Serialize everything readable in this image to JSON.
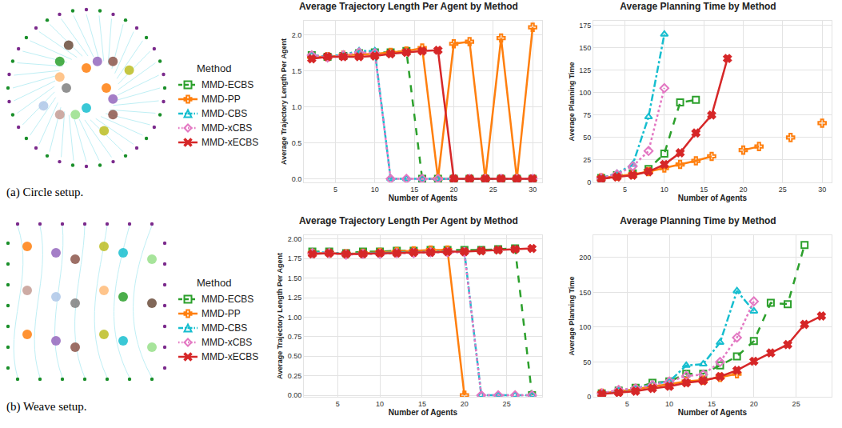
{
  "panels": [
    {
      "caption": "(a) Circle setup.",
      "legend_title": "Method"
    },
    {
      "caption": "(b) Weave setup.",
      "legend_title": "Method"
    }
  ],
  "chart_data": [
    {
      "type": "line",
      "title": "Average Trajectory Length Per Agent by Method",
      "x_label": "Number of Agents",
      "y_label": "Average Trajectory Length Per Agent",
      "x": [
        2,
        4,
        6,
        8,
        10,
        12,
        14,
        16,
        18,
        20,
        22,
        24,
        26,
        28,
        30
      ],
      "xlim": [
        1,
        31.2
      ],
      "xticks": [
        5,
        10,
        15,
        20,
        25,
        30
      ],
      "ylim": [
        -0.05,
        2.2
      ],
      "yticks": [
        {
          "value": 0,
          "label": "0.0"
        },
        {
          "value": 0.5,
          "label": "0.5"
        },
        {
          "value": 1,
          "label": "1.0"
        },
        {
          "value": 1.5,
          "label": "1.5"
        },
        {
          "value": 2,
          "label": "2.0"
        }
      ],
      "grid": true,
      "series": [
        {
          "name": "MMD-ECBS",
          "color": "#2ca02c",
          "marker": "square",
          "line_style": "dash",
          "values": [
            1.72,
            1.7,
            1.71,
            1.75,
            1.76,
            1.76,
            1.78,
            0,
            0,
            0,
            0,
            0,
            0,
            0,
            0
          ]
        },
        {
          "name": "MMD-PP",
          "color": "#ff7f0e",
          "marker": "plus",
          "line_style": "solid",
          "values": [
            1.7,
            1.7,
            1.72,
            1.73,
            1.74,
            1.76,
            1.78,
            1.82,
            0,
            1.88,
            1.91,
            0,
            1.96,
            0,
            2.11
          ]
        },
        {
          "name": "MMD-CBS",
          "color": "#17becf",
          "marker": "triangle",
          "line_style": "dashdot",
          "values": [
            1.72,
            1.7,
            1.73,
            1.78,
            1.78,
            0,
            0,
            0,
            0,
            0,
            0,
            0,
            0,
            0,
            0
          ]
        },
        {
          "name": "MMD-xCBS",
          "color": "#e377c2",
          "marker": "diamond",
          "line_style": "dot",
          "values": [
            1.72,
            1.69,
            1.72,
            1.76,
            1.75,
            0,
            0,
            0,
            0,
            0,
            0,
            0,
            0,
            0,
            0
          ]
        },
        {
          "name": "MMD-xECBS",
          "color": "#d62728",
          "marker": "x",
          "line_style": "solid",
          "values": [
            1.67,
            1.7,
            1.7,
            1.7,
            1.71,
            1.74,
            1.76,
            1.78,
            1.79,
            0,
            0,
            0,
            0,
            0,
            0
          ]
        }
      ]
    },
    {
      "type": "line",
      "title": "Average Planning Time by Method",
      "x_label": "Number of Agents",
      "y_label": "Average Planning Time",
      "x": [
        2,
        4,
        6,
        8,
        10,
        12,
        14,
        16,
        18,
        20,
        22,
        24,
        26,
        28,
        30
      ],
      "xlim": [
        1,
        31.2
      ],
      "xticks": [
        5,
        10,
        15,
        20,
        25,
        30
      ],
      "ylim": [
        0,
        180
      ],
      "yticks": [
        0,
        25,
        50,
        75,
        100,
        125,
        150,
        175
      ],
      "grid": true,
      "series": [
        {
          "name": "MMD-ECBS",
          "color": "#2ca02c",
          "marker": "square",
          "line_style": "dash",
          "values": [
            5,
            8,
            10,
            15,
            32,
            89,
            92,
            null,
            null,
            null,
            null,
            null,
            null,
            null,
            null
          ]
        },
        {
          "name": "MMD-PP",
          "color": "#ff7f0e",
          "marker": "plus",
          "line_style": "solid",
          "values": [
            5,
            7,
            9,
            12,
            16,
            20,
            24,
            29,
            null,
            36,
            40,
            null,
            50,
            null,
            66
          ]
        },
        {
          "name": "MMD-CBS",
          "color": "#17becf",
          "marker": "triangle",
          "line_style": "dashdot",
          "values": [
            5,
            10,
            20,
            73,
            165,
            null,
            null,
            null,
            null,
            null,
            null,
            null,
            null,
            null,
            null
          ]
        },
        {
          "name": "MMD-xCBS",
          "color": "#e377c2",
          "marker": "diamond",
          "line_style": "dot",
          "values": [
            5,
            9,
            18,
            35,
            105,
            null,
            null,
            null,
            null,
            null,
            null,
            null,
            null,
            null,
            null
          ]
        },
        {
          "name": "MMD-xECBS",
          "color": "#d62728",
          "marker": "x",
          "line_style": "solid",
          "values": [
            4,
            6,
            8,
            12,
            20,
            33,
            55,
            75,
            138,
            null,
            null,
            null,
            null,
            null,
            null
          ]
        }
      ]
    },
    {
      "type": "line",
      "title": "Average Trajectory Length Per Agent by Method",
      "x_label": "Number of Agents",
      "y_label": "Average Trajectory Length Per Agent",
      "x": [
        2,
        4,
        6,
        8,
        10,
        12,
        14,
        16,
        18,
        20,
        22,
        24,
        26,
        28
      ],
      "xlim": [
        1,
        29.2
      ],
      "xticks": [
        5,
        10,
        15,
        20,
        25
      ],
      "ylim": [
        -0.02,
        2.05
      ],
      "yticks": [
        {
          "value": 0,
          "label": "0.00"
        },
        {
          "value": 0.25,
          "label": "0.25"
        },
        {
          "value": 0.5,
          "label": "0.50"
        },
        {
          "value": 0.75,
          "label": "0.75"
        },
        {
          "value": 1,
          "label": "1.00"
        },
        {
          "value": 1.25,
          "label": "1.25"
        },
        {
          "value": 1.5,
          "label": "1.50"
        },
        {
          "value": 1.75,
          "label": "1.75"
        },
        {
          "value": 2,
          "label": "2.00"
        }
      ],
      "grid": true,
      "series": [
        {
          "name": "MMD-ECBS",
          "color": "#2ca02c",
          "marker": "square",
          "line_style": "dash",
          "values": [
            1.84,
            1.84,
            1.82,
            1.84,
            1.84,
            1.85,
            1.85,
            1.86,
            1.86,
            1.86,
            1.86,
            1.87,
            1.88,
            0
          ]
        },
        {
          "name": "MMD-PP",
          "color": "#ff7f0e",
          "marker": "plus",
          "line_style": "solid",
          "values": [
            1.82,
            1.82,
            1.81,
            1.82,
            1.83,
            1.84,
            1.85,
            1.86,
            1.86,
            0,
            null,
            null,
            null,
            null
          ]
        },
        {
          "name": "MMD-CBS",
          "color": "#17becf",
          "marker": "triangle",
          "line_style": "dashdot",
          "values": [
            1.83,
            1.83,
            1.81,
            1.82,
            1.82,
            1.83,
            1.83,
            1.84,
            1.84,
            1.84,
            0,
            0,
            0,
            0
          ]
        },
        {
          "name": "MMD-xCBS",
          "color": "#e377c2",
          "marker": "diamond",
          "line_style": "dot",
          "values": [
            1.82,
            1.82,
            1.8,
            1.81,
            1.81,
            1.82,
            1.82,
            1.83,
            1.83,
            1.83,
            0,
            0,
            0,
            0
          ]
        },
        {
          "name": "MMD-xECBS",
          "color": "#d62728",
          "marker": "x",
          "line_style": "solid",
          "values": [
            1.81,
            1.82,
            1.81,
            1.81,
            1.82,
            1.82,
            1.83,
            1.83,
            1.84,
            1.84,
            1.85,
            1.86,
            1.87,
            1.88
          ]
        }
      ]
    },
    {
      "type": "line",
      "title": "Average Planning Time by Method",
      "x_label": "Number of Agents",
      "y_label": "Average Planning Time",
      "x": [
        2,
        4,
        6,
        8,
        10,
        12,
        14,
        16,
        18,
        20,
        22,
        24,
        26,
        28
      ],
      "xlim": [
        1,
        29.2
      ],
      "xticks": [
        5,
        10,
        15,
        20,
        25
      ],
      "ylim": [
        0,
        232
      ],
      "yticks": [
        0,
        50,
        100,
        150,
        200
      ],
      "grid": true,
      "series": [
        {
          "name": "MMD-ECBS",
          "color": "#2ca02c",
          "marker": "square",
          "line_style": "dash",
          "values": [
            5,
            9,
            13,
            20,
            22,
            33,
            33,
            45,
            58,
            80,
            135,
            133,
            218,
            null
          ]
        },
        {
          "name": "MMD-PP",
          "color": "#ff7f0e",
          "marker": "plus",
          "line_style": "solid",
          "values": [
            5,
            8,
            11,
            15,
            18,
            22,
            24,
            28,
            33,
            null,
            null,
            null,
            null,
            null
          ]
        },
        {
          "name": "MMD-CBS",
          "color": "#17becf",
          "marker": "triangle",
          "line_style": "dashdot",
          "values": [
            5,
            9,
            12,
            18,
            22,
            45,
            47,
            78,
            152,
            123,
            null,
            null,
            null,
            null
          ]
        },
        {
          "name": "MMD-xCBS",
          "color": "#e377c2",
          "marker": "diamond",
          "line_style": "dot",
          "values": [
            5,
            10,
            12,
            17,
            22,
            30,
            32,
            50,
            85,
            137,
            null,
            null,
            null,
            null
          ]
        },
        {
          "name": "MMD-xECBS",
          "color": "#d62728",
          "marker": "x",
          "line_style": "solid",
          "values": [
            4,
            6,
            8,
            12,
            15,
            20,
            23,
            29,
            38,
            51,
            63,
            75,
            104,
            116
          ]
        }
      ]
    }
  ]
}
